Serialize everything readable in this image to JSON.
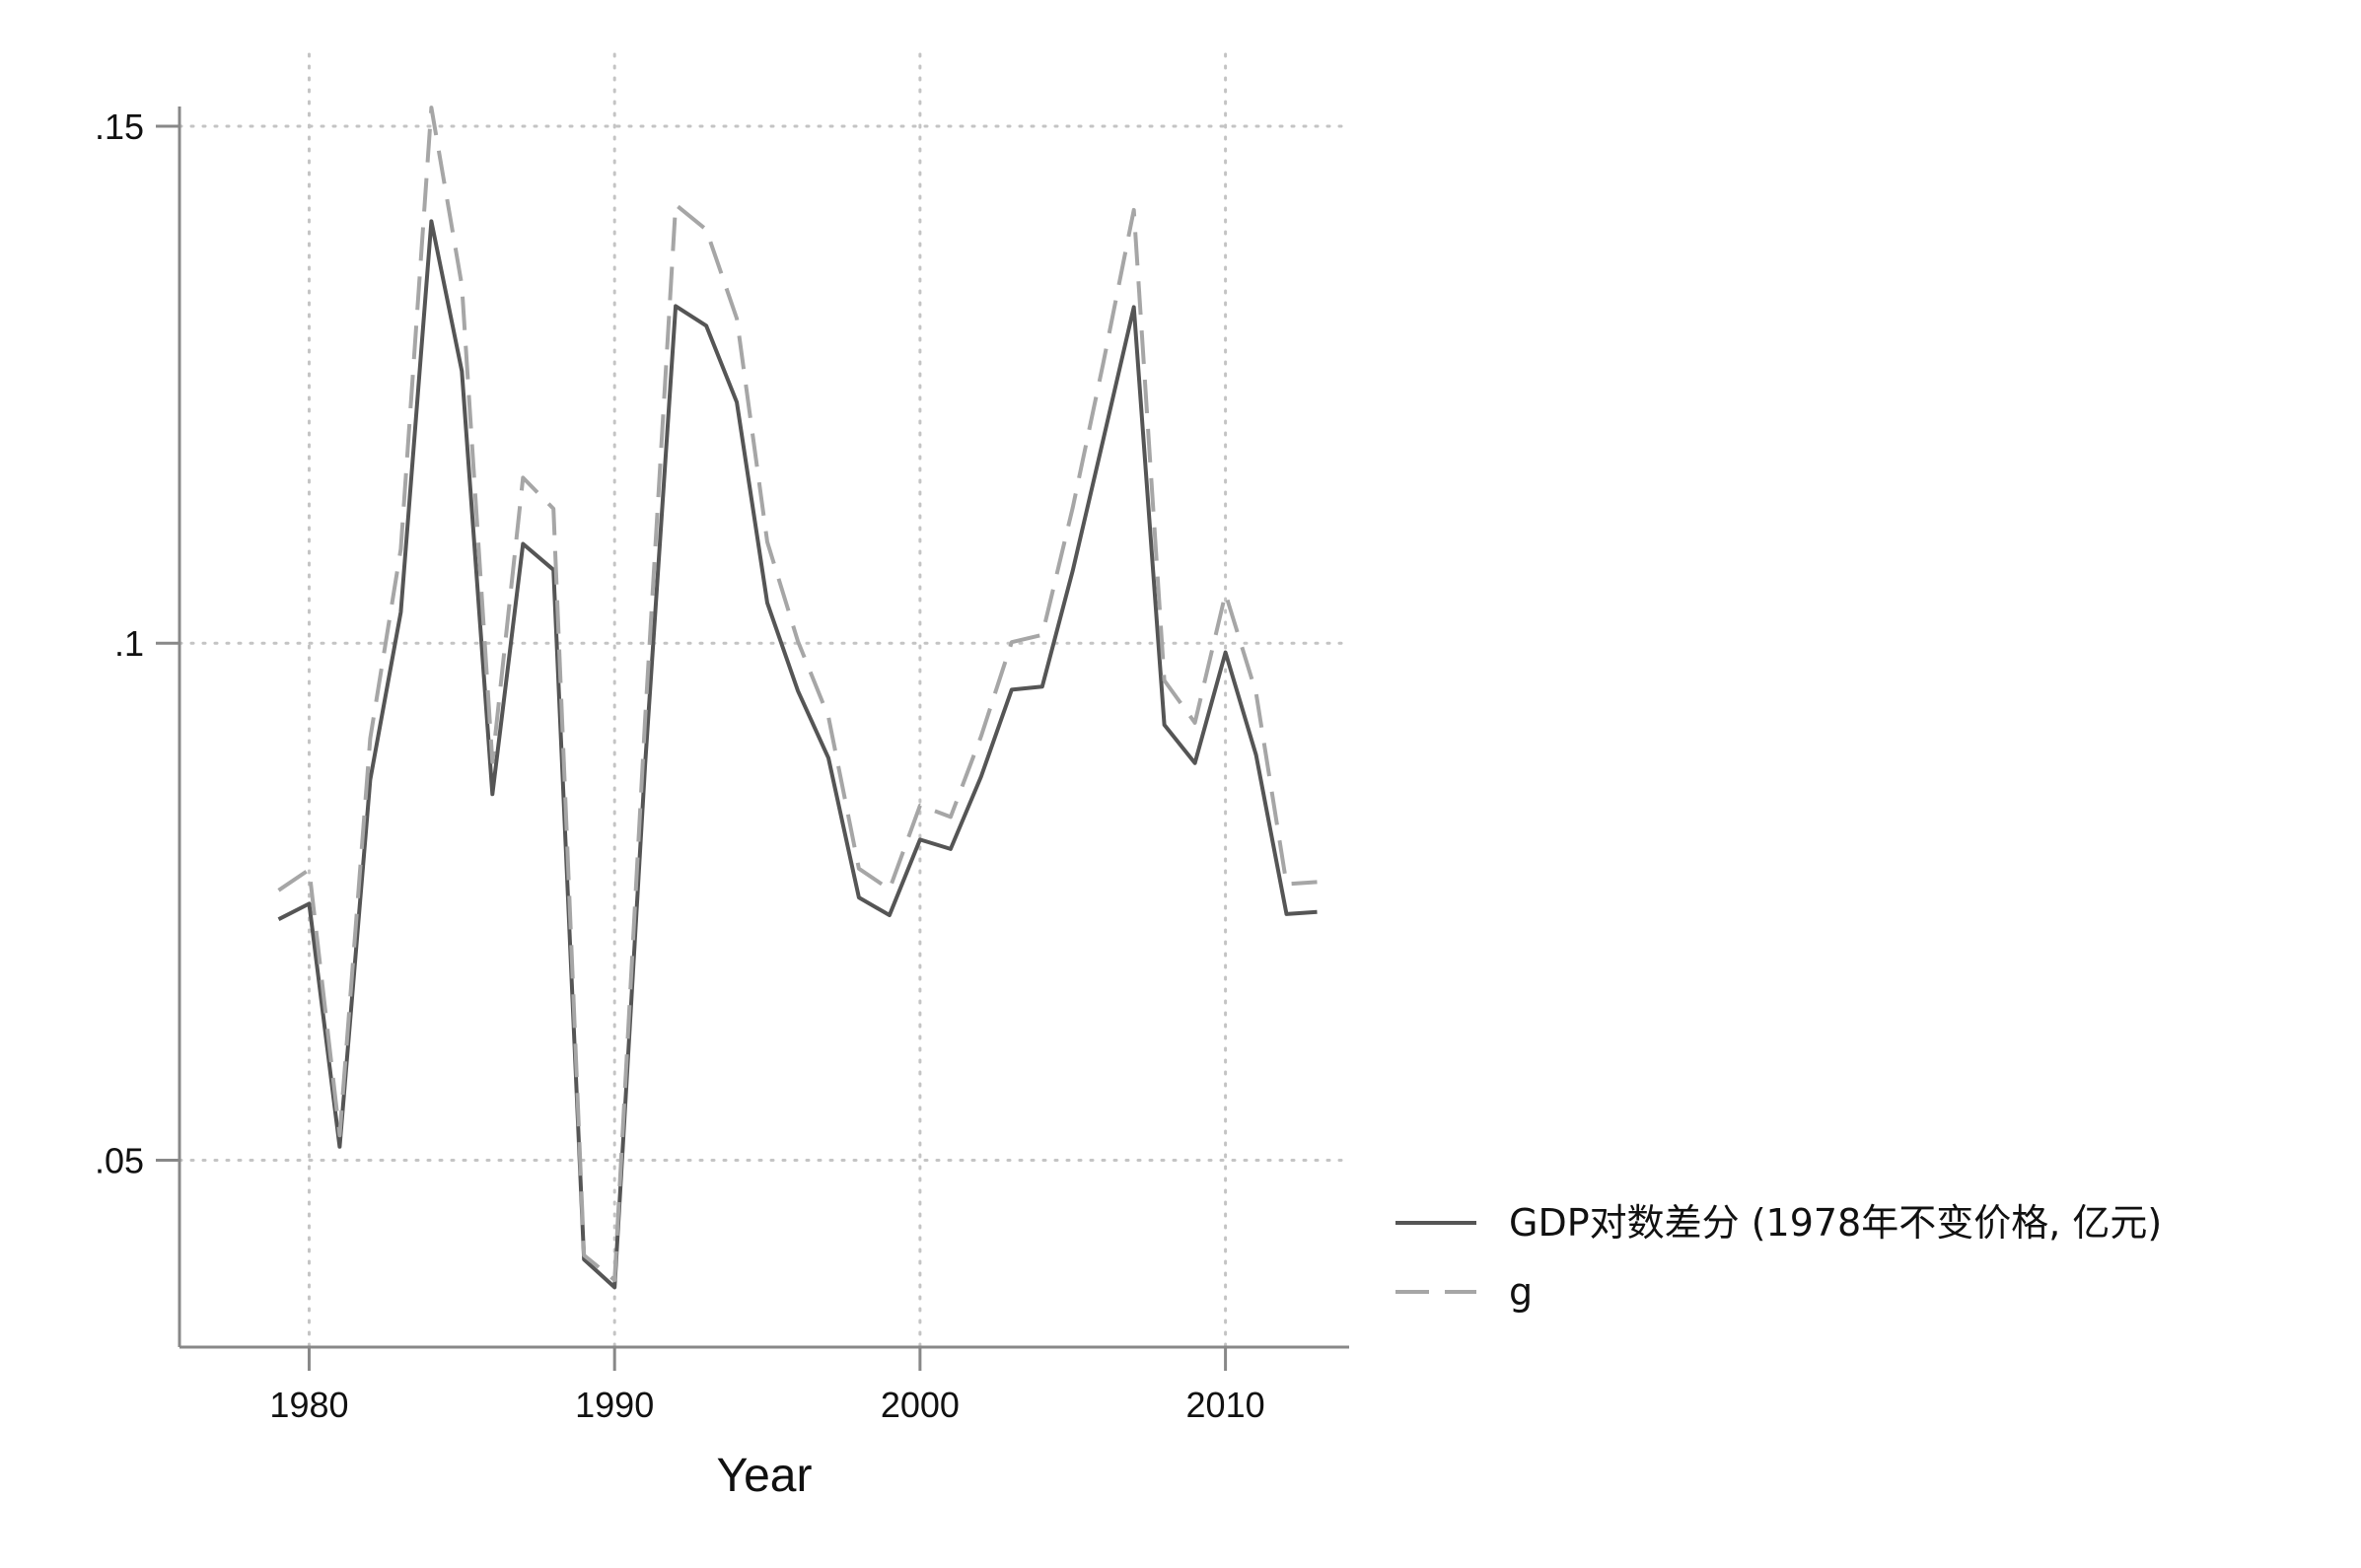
{
  "chart_data": {
    "type": "line",
    "title": "",
    "xlabel": "Year",
    "ylabel": "",
    "xlim": [
      1979,
      2013
    ],
    "ylim": [
      0.0345,
      0.154
    ],
    "xticks": [
      1980,
      1990,
      2000,
      2010
    ],
    "xtick_labels": [
      "1980",
      "1990",
      "2000",
      "2010"
    ],
    "yticks": [
      0.05,
      0.1,
      0.15
    ],
    "ytick_labels": [
      ".05",
      ".1",
      ".15"
    ],
    "grid": true,
    "legend_position": "right",
    "x": [
      1979,
      1980,
      1981,
      1982,
      1983,
      1984,
      1985,
      1986,
      1987,
      1988,
      1989,
      1990,
      1991,
      1992,
      1993,
      1994,
      1995,
      1996,
      1997,
      1998,
      1999,
      2000,
      2001,
      2002,
      2003,
      2004,
      2005,
      2006,
      2007,
      2008,
      2009,
      2010,
      2011,
      2012,
      2013
    ],
    "series": [
      {
        "name": "GDP对数差分 (1978年不变价格, 亿元)",
        "color": "#555555",
        "style": "solid",
        "values": [
          0.0733,
          0.0748,
          0.0513,
          0.0868,
          0.103,
          0.1408,
          0.1263,
          0.0854,
          0.1096,
          0.1071,
          0.0404,
          0.0377,
          0.0882,
          0.1326,
          0.1307,
          0.1233,
          0.1039,
          0.0954,
          0.0889,
          0.0754,
          0.0737,
          0.081,
          0.0801,
          0.0871,
          0.0955,
          0.0958,
          0.107,
          0.1197,
          0.1325,
          0.0921,
          0.0884,
          0.0991,
          0.0892,
          0.0738,
          0.074
        ]
      },
      {
        "name": "g",
        "color": "#a6a6a6",
        "style": "dashed",
        "values": [
          0.0761,
          0.0781,
          0.0524,
          0.0908,
          0.1091,
          0.1518,
          0.1346,
          0.0885,
          0.116,
          0.113,
          0.0408,
          0.0384,
          0.0926,
          0.1424,
          0.14,
          0.1314,
          0.1098,
          0.1002,
          0.0929,
          0.0782,
          0.0762,
          0.0843,
          0.0832,
          0.091,
          0.1001,
          0.1008,
          0.1131,
          0.1271,
          0.1419,
          0.0964,
          0.0923,
          0.1048,
          0.0952,
          0.0767,
          0.0769
        ]
      }
    ]
  }
}
